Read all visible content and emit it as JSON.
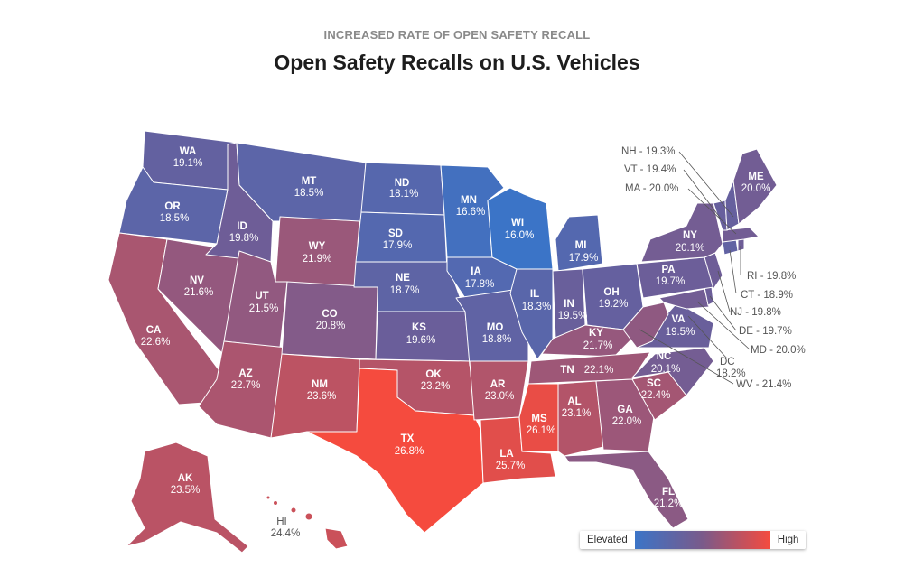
{
  "header": {
    "kicker": "INCREASED RATE OF OPEN SAFETY RECALL",
    "title": "Open Safety Recalls on U.S. Vehicles"
  },
  "legend": {
    "low_label": "Elevated",
    "high_label": "High",
    "colors": [
      "#3b74c7",
      "#6a5e9a",
      "#b55468",
      "#f54b3e"
    ]
  },
  "states": {
    "WA": {
      "value": "19.1%"
    },
    "OR": {
      "value": "18.5%"
    },
    "CA": {
      "value": "22.6%"
    },
    "NV": {
      "value": "21.6%"
    },
    "ID": {
      "value": "19.8%"
    },
    "MT": {
      "value": "18.5%"
    },
    "WY": {
      "value": "21.9%"
    },
    "UT": {
      "value": "21.5%"
    },
    "AZ": {
      "value": "22.7%"
    },
    "CO": {
      "value": "20.8%"
    },
    "NM": {
      "value": "23.6%"
    },
    "ND": {
      "value": "18.1%"
    },
    "SD": {
      "value": "17.9%"
    },
    "NE": {
      "value": "18.7%"
    },
    "KS": {
      "value": "19.6%"
    },
    "OK": {
      "value": "23.2%"
    },
    "TX": {
      "value": "26.8%"
    },
    "MN": {
      "value": "16.6%"
    },
    "IA": {
      "value": "17.8%"
    },
    "MO": {
      "value": "18.8%"
    },
    "AR": {
      "value": "23.0%"
    },
    "LA": {
      "value": "25.7%"
    },
    "WI": {
      "value": "16.0%"
    },
    "IL": {
      "value": "18.3%"
    },
    "MI": {
      "value": "17.9%"
    },
    "IN": {
      "value": "19.5%"
    },
    "OH": {
      "value": "19.2%"
    },
    "KY": {
      "value": "21.7%"
    },
    "TN": {
      "value": "22.1%"
    },
    "MS": {
      "value": "26.1%"
    },
    "AL": {
      "value": "23.1%"
    },
    "GA": {
      "value": "22.0%"
    },
    "FL": {
      "value": "21.2%"
    },
    "SC": {
      "value": "22.4%"
    },
    "NC": {
      "value": "20.1%"
    },
    "VA": {
      "value": "19.5%"
    },
    "PA": {
      "value": "19.7%"
    },
    "NY": {
      "value": "20.1%"
    },
    "ME": {
      "value": "20.0%"
    },
    "AK": {
      "value": "23.5%"
    },
    "HI": {
      "value": "24.4%"
    }
  },
  "callouts": {
    "nh": "NH - 19.3%",
    "vt": "VT - 19.4%",
    "ma": "MA - 20.0%",
    "ri": "RI - 19.8%",
    "ct": "CT - 18.9%",
    "nj": "NJ - 19.8%",
    "de": "DE - 19.7%",
    "md": "MD - 20.0%",
    "dc_code": "DC",
    "dc_value": "18.2%",
    "wv": "WV - 21.4%",
    "hi_code": "HI"
  }
}
